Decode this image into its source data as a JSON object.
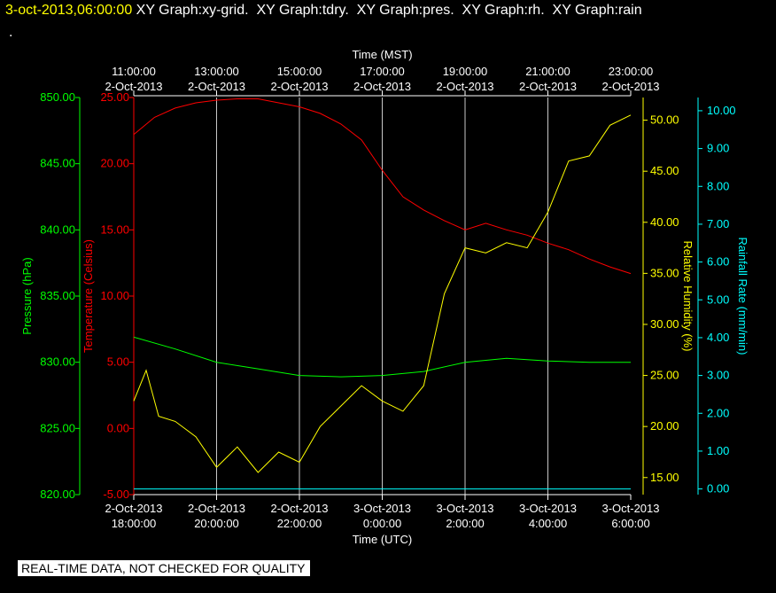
{
  "header": {
    "timestamp": "3-oct-2013,06:00:00",
    "titles": [
      "XY Graph:xy-grid.",
      "XY Graph:tdry.",
      "XY Graph:pres.",
      "XY Graph:rh.",
      "XY Graph:rain"
    ],
    "dot": "."
  },
  "footer": {
    "notice": "REAL-TIME DATA, NOT CHECKED FOR QUALITY"
  },
  "chart_data": {
    "type": "line",
    "grid": true,
    "x_bottom": {
      "label": "Time (UTC)",
      "ticks": [
        {
          "date": "2-Oct-2013",
          "time": "18:00:00"
        },
        {
          "date": "2-Oct-2013",
          "time": "20:00:00"
        },
        {
          "date": "2-Oct-2013",
          "time": "22:00:00"
        },
        {
          "date": "3-Oct-2013",
          "time": "0:00:00"
        },
        {
          "date": "3-Oct-2013",
          "time": "2:00:00"
        },
        {
          "date": "3-Oct-2013",
          "time": "4:00:00"
        },
        {
          "date": "3-Oct-2013",
          "time": "6:00:00"
        }
      ],
      "range": [
        "2-Oct-2013 18:00:00",
        "3-Oct-2013 6:00:00"
      ]
    },
    "x_top": {
      "label": "Time (MST)",
      "ticks": [
        {
          "time": "11:00:00",
          "date": "2-Oct-2013"
        },
        {
          "time": "13:00:00",
          "date": "2-Oct-2013"
        },
        {
          "time": "15:00:00",
          "date": "2-Oct-2013"
        },
        {
          "time": "17:00:00",
          "date": "2-Oct-2013"
        },
        {
          "time": "19:00:00",
          "date": "2-Oct-2013"
        },
        {
          "time": "21:00:00",
          "date": "2-Oct-2013"
        },
        {
          "time": "23:00:00",
          "date": "2-Oct-2013"
        }
      ]
    },
    "axes": {
      "pressure": {
        "label": "Pressure (hPa)",
        "color": "#00ff00",
        "ylim": [
          820,
          850
        ],
        "ticks": [
          "850.00",
          "845.00",
          "840.00",
          "835.00",
          "830.00",
          "825.00",
          "820.00"
        ]
      },
      "temperature": {
        "label": "Temperature (Celsius)",
        "color": "#ff0000",
        "ylim": [
          -5,
          25
        ],
        "ticks": [
          "25.00",
          "20.00",
          "15.00",
          "10.00",
          "5.00",
          "0.00",
          "-5.00"
        ]
      },
      "humidity": {
        "label": "Relative Humidity (%)",
        "color": "#ffff00",
        "ylim": [
          13.33,
          52.22
        ],
        "ticks": [
          "50.00",
          "45.00",
          "40.00",
          "35.00",
          "30.00",
          "25.00",
          "20.00",
          "15.00"
        ]
      },
      "rain": {
        "label": "Rainfall Rate (mm/min)",
        "color": "#00ffff",
        "ylim": [
          -0.15,
          10.35
        ],
        "ticks": [
          "10.00",
          "9.00",
          "8.00",
          "7.00",
          "6.00",
          "5.00",
          "4.00",
          "3.00",
          "2.00",
          "1.00",
          "0.00"
        ]
      }
    },
    "series": [
      {
        "axis": "temperature",
        "color": "#ff0000",
        "x_hours": [
          0,
          0.5,
          1,
          1.5,
          2,
          2.5,
          3,
          3.5,
          4,
          4.5,
          5,
          5.5,
          6,
          6.5,
          7,
          7.5,
          8,
          8.5,
          9,
          9.5,
          10,
          10.5,
          11,
          11.5,
          12
        ],
        "values": [
          22.2,
          23.5,
          24.2,
          24.6,
          24.8,
          24.9,
          24.9,
          24.6,
          24.3,
          23.8,
          23.0,
          21.8,
          19.5,
          17.5,
          16.5,
          15.7,
          15.0,
          15.5,
          15.0,
          14.6,
          14.0,
          13.5,
          12.8,
          12.2,
          11.7
        ]
      },
      {
        "axis": "pressure",
        "color": "#00ff00",
        "x_hours": [
          0,
          1,
          2,
          3,
          4,
          5,
          6,
          7,
          8,
          9,
          10,
          11,
          12
        ],
        "values": [
          831.9,
          831.0,
          830.0,
          829.5,
          829.0,
          828.9,
          829.0,
          829.3,
          830.0,
          830.3,
          830.1,
          830.0,
          830.0
        ]
      },
      {
        "axis": "humidity",
        "color": "#ffff00",
        "x_hours": [
          0,
          0.3,
          0.6,
          1,
          1.5,
          2,
          2.5,
          3,
          3.5,
          4,
          4.5,
          5,
          5.5,
          6,
          6.5,
          7,
          7.5,
          8,
          8.5,
          9,
          9.5,
          10,
          10.5,
          11,
          11.5,
          12
        ],
        "values": [
          22.5,
          25.5,
          21.0,
          20.5,
          19.0,
          16.0,
          18.0,
          15.5,
          17.5,
          16.5,
          20.0,
          22.0,
          24.0,
          22.5,
          21.5,
          24.0,
          33.0,
          37.5,
          37.0,
          38.0,
          37.5,
          41.0,
          46.0,
          46.5,
          49.5,
          50.5
        ]
      },
      {
        "axis": "rain",
        "color": "#00ffff",
        "x_hours": [
          0,
          12
        ],
        "values": [
          0,
          0
        ]
      }
    ]
  }
}
